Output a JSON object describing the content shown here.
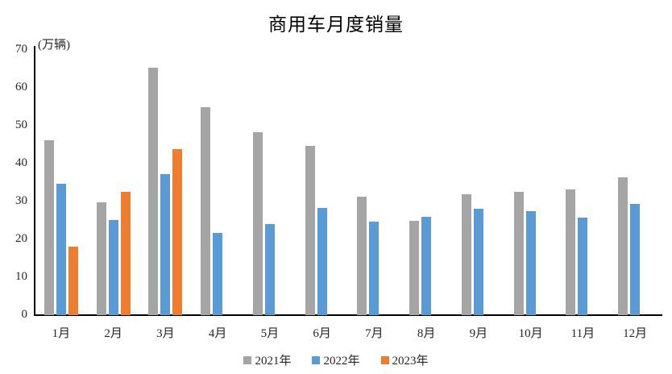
{
  "chart_data": {
    "type": "bar",
    "title": "商用车月度销量",
    "ylabel": "(万辆)",
    "xlabel": "",
    "ylim": [
      0,
      70
    ],
    "yticks": [
      0,
      10,
      20,
      30,
      40,
      50,
      60,
      70
    ],
    "grid": false,
    "legend_position": "bottom",
    "categories": [
      "1月",
      "2月",
      "3月",
      "4月",
      "5月",
      "6月",
      "7月",
      "8月",
      "9月",
      "10月",
      "11月",
      "12月"
    ],
    "series": [
      {
        "name": "2021年",
        "color": "#A5A5A5",
        "values": [
          45.9,
          29.7,
          65.2,
          54.8,
          48.2,
          44.6,
          31.2,
          24.7,
          31.7,
          32.3,
          33.0,
          36.3
        ]
      },
      {
        "name": "2022年",
        "color": "#5B9BD5",
        "values": [
          34.5,
          25.0,
          37.0,
          21.6,
          23.9,
          28.1,
          24.5,
          25.8,
          28.0,
          27.3,
          25.5,
          29.2
        ]
      },
      {
        "name": "2023年",
        "color": "#ED7D31",
        "values": [
          18.0,
          32.4,
          43.6,
          null,
          null,
          null,
          null,
          null,
          null,
          null,
          null,
          null
        ]
      }
    ]
  },
  "colors": {
    "axis_line": "#000000",
    "text": "#262626"
  }
}
